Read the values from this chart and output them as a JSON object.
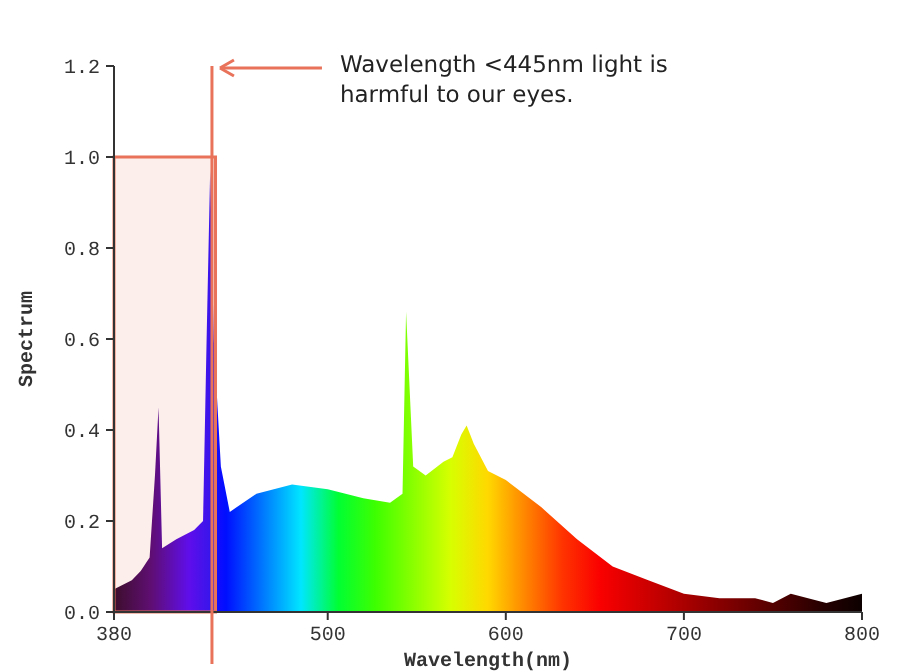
{
  "chart_data": {
    "type": "area",
    "xlabel": "Wavelength(nm)",
    "ylabel": "Spectrum",
    "x": [
      380,
      390,
      395,
      400,
      403,
      405,
      407,
      415,
      425,
      430,
      432,
      434,
      436,
      440,
      445,
      460,
      480,
      500,
      520,
      535,
      542,
      544,
      548,
      555,
      565,
      570,
      575,
      578,
      582,
      590,
      600,
      620,
      640,
      660,
      680,
      700,
      720,
      740,
      750,
      760,
      780,
      800
    ],
    "values": [
      0.05,
      0.07,
      0.09,
      0.12,
      0.3,
      0.45,
      0.14,
      0.16,
      0.18,
      0.2,
      0.6,
      0.97,
      0.6,
      0.32,
      0.22,
      0.26,
      0.28,
      0.27,
      0.25,
      0.24,
      0.26,
      0.66,
      0.32,
      0.3,
      0.33,
      0.34,
      0.39,
      0.41,
      0.37,
      0.31,
      0.29,
      0.23,
      0.16,
      0.1,
      0.07,
      0.04,
      0.03,
      0.03,
      0.02,
      0.04,
      0.02,
      0.04
    ],
    "xlim": [
      380,
      800
    ],
    "xticks": [
      380,
      500,
      600,
      700,
      800
    ],
    "ylim": [
      0,
      1.2
    ],
    "yticks": [
      {
        "value": 0,
        "label": "0.0"
      },
      {
        "value": 0.2,
        "label": "0.2"
      },
      {
        "value": 0.4,
        "label": "0.4"
      },
      {
        "value": 0.6,
        "label": "0.6"
      },
      {
        "value": 0.8,
        "label": "0.8"
      },
      {
        "value": 1,
        "label": "1.0"
      },
      {
        "value": 1.2,
        "label": "1.2"
      }
    ],
    "grid": false,
    "bands": [
      {
        "axis": "x",
        "from": 380,
        "to": 437,
        "color": "#e8735a"
      }
    ],
    "ref_lines": [
      {
        "axis": "x",
        "value": 435,
        "label": "Wavelength <445nm light is harmful to our eyes.",
        "color": "#e8735a"
      }
    ]
  }
}
